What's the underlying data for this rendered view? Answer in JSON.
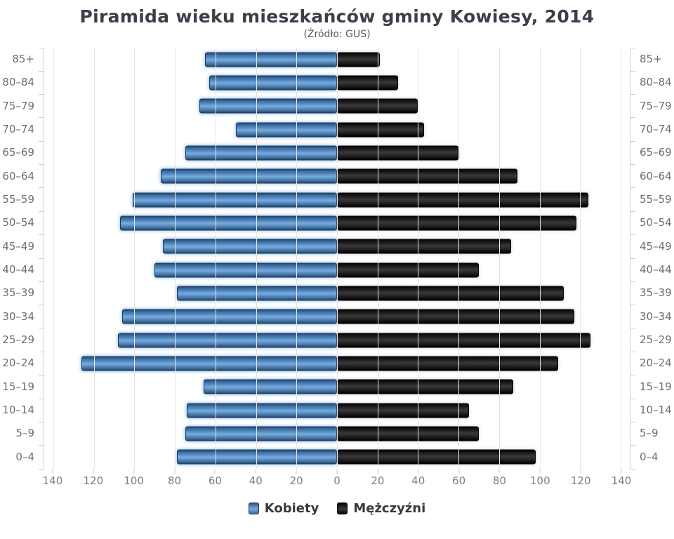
{
  "header": {
    "title": "Piramida wieku mieszkańców gminy Kowiesy, 2014",
    "subtitle": "(Źródło: GUS)"
  },
  "legend": {
    "women_label": "Kobiety",
    "men_label": "Mężczyźni"
  },
  "colors": {
    "women_bar": "#4f86c2",
    "men_bar": "#1a1a1a",
    "gridline": "#e6e6e6",
    "axis_text": "#7a7e84",
    "age_label_text": "#6b6f75",
    "title_text": "#3a3f49"
  },
  "chart_data": {
    "type": "bar",
    "variant": "population-pyramid",
    "title": "Piramida wieku mieszkańców gminy Kowiesy, 2014",
    "subtitle": "(Źródło: GUS)",
    "categories_top_to_bottom": [
      "85+",
      "80–84",
      "75–79",
      "70–74",
      "65–69",
      "60–64",
      "55–59",
      "50–54",
      "45–49",
      "40–44",
      "35–39",
      "30–34",
      "25–29",
      "20–24",
      "15–19",
      "10–14",
      "5–9",
      "0–4"
    ],
    "series": [
      {
        "name": "Kobiety",
        "side": "left",
        "color": "#4f86c2",
        "values": [
          65,
          63,
          68,
          50,
          75,
          87,
          101,
          107,
          86,
          90,
          79,
          106,
          108,
          126,
          66,
          74,
          75,
          79
        ]
      },
      {
        "name": "Mężczyźni",
        "side": "right",
        "color": "#1a1a1a",
        "values": [
          21,
          30,
          40,
          43,
          60,
          89,
          124,
          118,
          86,
          70,
          112,
          117,
          125,
          109,
          87,
          65,
          70,
          98
        ]
      }
    ],
    "xlim": [
      0,
      140
    ],
    "x_tick_step": 20,
    "x_tick_labels_left": [
      "140",
      "120",
      "100",
      "80",
      "60",
      "40",
      "20"
    ],
    "x_tick_label_center": "0",
    "x_tick_labels_right": [
      "20",
      "40",
      "60",
      "80",
      "100",
      "120",
      "140"
    ],
    "grid": true,
    "legend_position": "bottom",
    "y_labels_both_sides": true
  }
}
